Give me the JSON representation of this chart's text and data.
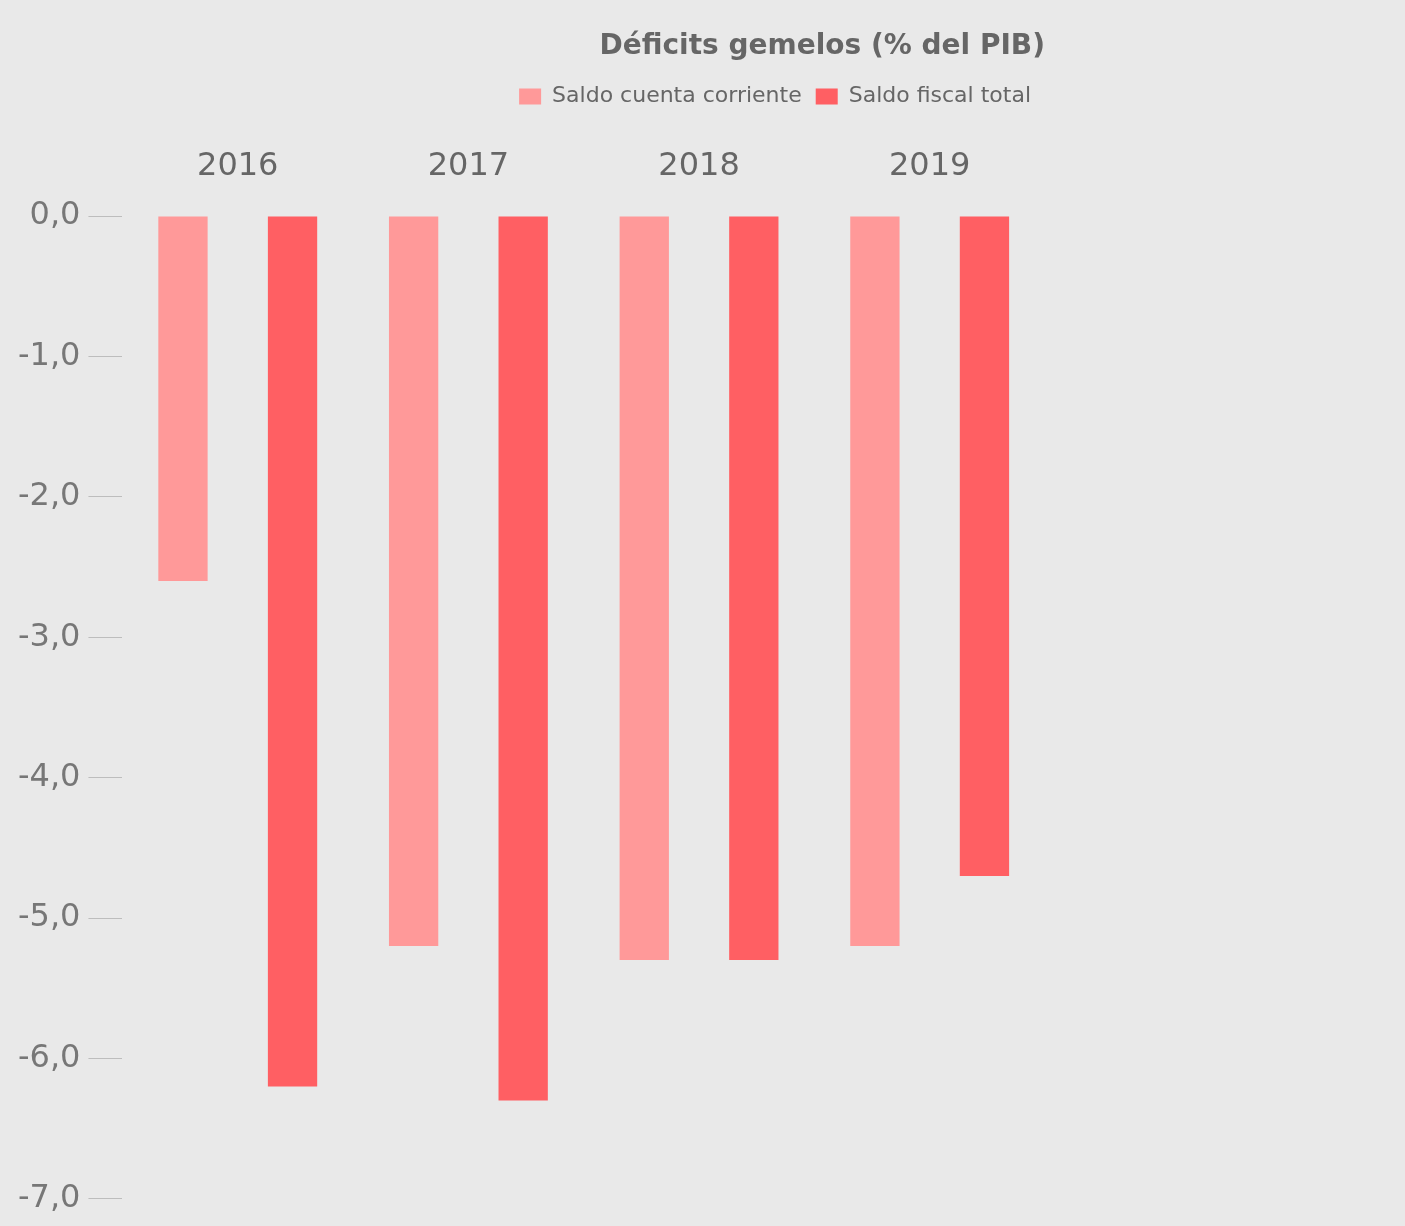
{
  "chart_data": {
    "type": "bar",
    "title": "Déficits gemelos (% del PIB)",
    "categories": [
      "2016",
      "2017",
      "2018",
      "2019"
    ],
    "series": [
      {
        "name": "Saldo cuenta corriente",
        "color": "#ff9999",
        "values": [
          -2.6,
          -5.2,
          -5.3,
          -5.2
        ]
      },
      {
        "name": "Saldo fiscal total",
        "color": "#ff5f63",
        "values": [
          -6.2,
          -6.3,
          -5.3,
          -4.7
        ]
      }
    ],
    "ylim": [
      -7,
      0
    ],
    "yticks": [
      {
        "value": 0,
        "label": "0,0"
      },
      {
        "value": -1,
        "label": "-1,0"
      },
      {
        "value": -2,
        "label": "-2,0"
      },
      {
        "value": -3,
        "label": "-3,0"
      },
      {
        "value": -4,
        "label": "-4,0"
      },
      {
        "value": -5,
        "label": "-5,0"
      },
      {
        "value": -6,
        "label": "-6,0"
      },
      {
        "value": -7,
        "label": "-7,0"
      }
    ],
    "grid": false,
    "legend": "top right"
  }
}
